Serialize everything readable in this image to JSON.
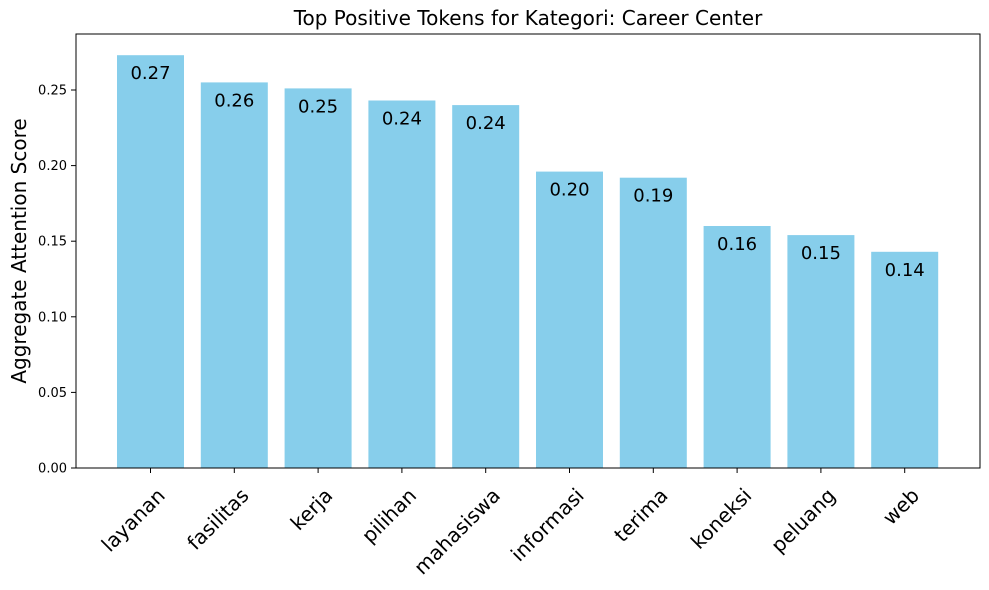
{
  "chart_data": {
    "type": "bar",
    "title": "Top Positive Tokens for Kategori: Career Center",
    "xlabel": "",
    "ylabel": "Aggregate Attention Score",
    "categories": [
      "layanan",
      "fasilitas",
      "kerja",
      "pilihan",
      "mahasiswa",
      "informasi",
      "terima",
      "koneksi",
      "peluang",
      "web"
    ],
    "values": [
      0.273,
      0.255,
      0.251,
      0.243,
      0.24,
      0.196,
      0.192,
      0.16,
      0.154,
      0.143
    ],
    "value_labels": [
      "0.27",
      "0.26",
      "0.25",
      "0.24",
      "0.24",
      "0.20",
      "0.19",
      "0.16",
      "0.15",
      "0.14"
    ],
    "ylim": [
      0,
      0.287
    ],
    "yticks": [
      0.0,
      0.05,
      0.1,
      0.15,
      0.2,
      0.25
    ],
    "ytick_labels": [
      "0.00",
      "0.05",
      "0.10",
      "0.15",
      "0.20",
      "0.25"
    ],
    "grid": false,
    "bar_color": "#87ceeb"
  }
}
